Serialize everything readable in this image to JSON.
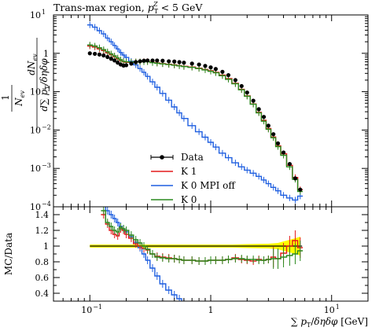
{
  "chart_data": [
    {
      "type": "line",
      "title": "Trans-max region, p_T^Z < 5 GeV",
      "title_parts": [
        "Trans-max region, ",
        "p",
        "T",
        "Z",
        " < 5 GeV"
      ],
      "xlabel": "∑ p_T/δηδφ [GeV]",
      "xlabel_parts": [
        "∑ ",
        "p",
        "T",
        "/",
        "δηδφ",
        " [GeV]"
      ],
      "ylabel_parts": [
        "1",
        "N",
        "ev",
        "dN",
        "ev",
        "d∑ p",
        "T",
        "/δηδφ"
      ],
      "x_scale": "log",
      "y_scale": "log",
      "xlim": [
        0.05,
        20
      ],
      "ylim": [
        0.0001,
        10
      ],
      "x_tick_labels": [
        "10",
        "−1",
        "1",
        "10",
        "1"
      ],
      "y_tick_labels": [
        {
          "base": "10",
          "exp": "−4"
        },
        {
          "base": "10",
          "exp": "−3"
        },
        {
          "base": "10",
          "exp": "−2"
        },
        {
          "base": "10",
          "exp": "−1"
        },
        {
          "base": "1",
          "exp": ""
        },
        {
          "base": "10",
          "exp": "1"
        }
      ],
      "legend_position": "lower-center",
      "legend": [
        "Data",
        "K 1",
        "K 0 MPI off",
        "K 0"
      ],
      "colors": {
        "Data": "#000000",
        "K 1": "#e41a1c",
        "K 0 MPI off": "#1f5fe0",
        "K 0": "#2a8a1f"
      },
      "series": [
        {
          "name": "Data",
          "x": [
            0.1,
            0.11,
            0.12,
            0.13,
            0.14,
            0.15,
            0.16,
            0.17,
            0.18,
            0.19,
            0.2,
            0.22,
            0.24,
            0.26,
            0.28,
            0.3,
            0.33,
            0.36,
            0.4,
            0.45,
            0.5,
            0.55,
            0.6,
            0.7,
            0.8,
            0.9,
            1.0,
            1.1,
            1.25,
            1.4,
            1.6,
            1.8,
            2.0,
            2.25,
            2.5,
            2.75,
            3.0,
            3.3,
            3.6,
            4.0,
            4.5,
            5.0,
            5.5
          ],
          "y": [
            1.0,
            0.97,
            0.93,
            0.88,
            0.8,
            0.72,
            0.65,
            0.57,
            0.51,
            0.48,
            0.49,
            0.54,
            0.59,
            0.62,
            0.64,
            0.65,
            0.65,
            0.65,
            0.64,
            0.62,
            0.61,
            0.59,
            0.57,
            0.54,
            0.51,
            0.47,
            0.43,
            0.39,
            0.33,
            0.27,
            0.2,
            0.14,
            0.095,
            0.058,
            0.035,
            0.022,
            0.013,
            0.0078,
            0.0045,
            0.0026,
            0.0013,
            0.00055,
            0.00028
          ]
        },
        {
          "name": "K 1",
          "x": [
            0.1,
            0.11,
            0.12,
            0.13,
            0.14,
            0.15,
            0.16,
            0.17,
            0.18,
            0.19,
            0.2,
            0.22,
            0.24,
            0.26,
            0.28,
            0.3,
            0.33,
            0.36,
            0.4,
            0.45,
            0.5,
            0.55,
            0.6,
            0.7,
            0.8,
            0.9,
            1.0,
            1.1,
            1.25,
            1.4,
            1.6,
            1.8,
            2.0,
            2.25,
            2.5,
            2.75,
            3.0,
            3.3,
            3.6,
            4.0,
            4.5,
            5.0,
            5.5
          ],
          "y": [
            1.55,
            1.45,
            1.3,
            1.18,
            1.03,
            0.92,
            0.82,
            0.72,
            0.65,
            0.6,
            0.58,
            0.58,
            0.6,
            0.6,
            0.61,
            0.61,
            0.58,
            0.56,
            0.54,
            0.52,
            0.5,
            0.48,
            0.46,
            0.44,
            0.41,
            0.38,
            0.35,
            0.32,
            0.27,
            0.22,
            0.165,
            0.115,
            0.078,
            0.048,
            0.029,
            0.018,
            0.011,
            0.0066,
            0.0039,
            0.0024,
            0.0012,
            0.00058,
            0.00028
          ]
        },
        {
          "name": "K 0 MPI off",
          "x": [
            0.1,
            0.11,
            0.12,
            0.13,
            0.14,
            0.15,
            0.16,
            0.17,
            0.18,
            0.19,
            0.2,
            0.22,
            0.24,
            0.26,
            0.28,
            0.3,
            0.33,
            0.36,
            0.4,
            0.45,
            0.5,
            0.55,
            0.6,
            0.7,
            0.8,
            0.9,
            1.0,
            1.1,
            1.25,
            1.4,
            1.6,
            1.8,
            2.0,
            2.25,
            2.5,
            2.75,
            3.0,
            3.3,
            3.6,
            4.0,
            4.5,
            5.0,
            5.5
          ],
          "y": [
            5.5,
            4.8,
            3.9,
            3.2,
            2.5,
            2.0,
            1.6,
            1.3,
            1.05,
            0.9,
            0.78,
            0.62,
            0.5,
            0.4,
            0.32,
            0.25,
            0.18,
            0.13,
            0.09,
            0.06,
            0.04,
            0.028,
            0.02,
            0.013,
            0.009,
            0.0065,
            0.0048,
            0.0036,
            0.0025,
            0.0019,
            0.0014,
            0.0011,
            0.0009,
            0.00075,
            0.00062,
            0.0005,
            0.0004,
            0.00032,
            0.00026,
            0.0002,
            0.00017,
            0.00015,
            0.00019
          ]
        },
        {
          "name": "K 0",
          "x": [
            0.1,
            0.11,
            0.12,
            0.13,
            0.14,
            0.15,
            0.16,
            0.17,
            0.18,
            0.19,
            0.2,
            0.22,
            0.24,
            0.26,
            0.28,
            0.3,
            0.33,
            0.36,
            0.4,
            0.45,
            0.5,
            0.55,
            0.6,
            0.7,
            0.8,
            0.9,
            1.0,
            1.1,
            1.25,
            1.4,
            1.6,
            1.8,
            2.0,
            2.25,
            2.5,
            2.75,
            3.0,
            3.3,
            3.6,
            4.0,
            4.5,
            5.0,
            5.5
          ],
          "y": [
            1.65,
            1.55,
            1.4,
            1.25,
            1.1,
            0.97,
            0.86,
            0.76,
            0.68,
            0.62,
            0.6,
            0.59,
            0.6,
            0.6,
            0.6,
            0.6,
            0.57,
            0.55,
            0.53,
            0.51,
            0.49,
            0.47,
            0.45,
            0.43,
            0.4,
            0.37,
            0.34,
            0.31,
            0.26,
            0.21,
            0.16,
            0.112,
            0.076,
            0.047,
            0.028,
            0.017,
            0.0105,
            0.0063,
            0.0037,
            0.0022,
            0.0011,
            0.00052,
            0.00025
          ]
        }
      ]
    },
    {
      "type": "line",
      "ylabel": "MC/Data",
      "x_scale": "log",
      "xlim": [
        0.05,
        20
      ],
      "ylim": [
        0.3,
        1.5
      ],
      "y_tick_labels": [
        "0.4",
        "0.6",
        "0.8",
        "1",
        "1.2",
        "1.4"
      ],
      "data_uncertainty_band": {
        "color": "#ffff00",
        "x": [
          0.1,
          0.2,
          0.4,
          0.6,
          1.0,
          1.5,
          2.0,
          3.0,
          3.6,
          4.0,
          4.5,
          5.0,
          5.5
        ],
        "half_width": [
          0.02,
          0.02,
          0.02,
          0.02,
          0.02,
          0.02,
          0.025,
          0.03,
          0.04,
          0.06,
          0.08,
          0.1,
          0.12
        ]
      },
      "series": [
        {
          "name": "K 1",
          "x": [
            0.13,
            0.14,
            0.15,
            0.16,
            0.17,
            0.18,
            0.19,
            0.2,
            0.22,
            0.24,
            0.26,
            0.28,
            0.3,
            0.33,
            0.36,
            0.4,
            0.45,
            0.5,
            0.55,
            0.6,
            0.7,
            0.8,
            0.9,
            1.0,
            1.1,
            1.25,
            1.4,
            1.6,
            1.8,
            2.0,
            2.25,
            2.5,
            2.75,
            3.0,
            3.3,
            3.6,
            4.0,
            4.5,
            5.0,
            5.5
          ],
          "y": [
            1.4,
            1.28,
            1.2,
            1.15,
            1.13,
            1.22,
            1.2,
            1.15,
            1.1,
            1.03,
            1.0,
            0.97,
            0.95,
            0.9,
            0.87,
            0.86,
            0.85,
            0.84,
            0.83,
            0.82,
            0.82,
            0.81,
            0.81,
            0.82,
            0.82,
            0.82,
            0.83,
            0.85,
            0.83,
            0.82,
            0.81,
            0.83,
            0.82,
            0.83,
            0.86,
            0.84,
            0.91,
            1.0,
            1.07,
            0.98
          ]
        },
        {
          "name": "K 0 MPI off",
          "x": [
            0.13,
            0.14,
            0.15,
            0.16,
            0.17,
            0.18,
            0.19,
            0.2,
            0.22,
            0.24,
            0.26,
            0.28,
            0.3,
            0.33,
            0.36,
            0.4,
            0.45,
            0.5,
            0.55,
            0.6
          ],
          "y": [
            1.6,
            1.45,
            1.4,
            1.35,
            1.3,
            1.25,
            1.22,
            1.18,
            1.12,
            1.05,
            0.98,
            0.9,
            0.82,
            0.72,
            0.62,
            0.52,
            0.44,
            0.38,
            0.33,
            0.28
          ]
        },
        {
          "name": "K 0",
          "x": [
            0.13,
            0.14,
            0.15,
            0.16,
            0.17,
            0.18,
            0.19,
            0.2,
            0.22,
            0.24,
            0.26,
            0.28,
            0.3,
            0.33,
            0.36,
            0.4,
            0.45,
            0.5,
            0.55,
            0.6,
            0.7,
            0.8,
            0.9,
            1.0,
            1.1,
            1.25,
            1.4,
            1.6,
            1.8,
            2.0,
            2.25,
            2.5,
            2.75,
            3.0,
            3.3,
            3.6,
            4.0,
            4.5,
            5.0,
            5.5
          ],
          "y": [
            1.45,
            1.3,
            1.25,
            1.2,
            1.18,
            1.24,
            1.22,
            1.2,
            1.14,
            1.08,
            1.04,
            1.0,
            0.96,
            0.9,
            0.86,
            0.85,
            0.84,
            0.84,
            0.83,
            0.82,
            0.82,
            0.81,
            0.81,
            0.82,
            0.82,
            0.82,
            0.83,
            0.84,
            0.84,
            0.83,
            0.83,
            0.82,
            0.82,
            0.83,
            0.84,
            0.84,
            0.86,
            0.88,
            0.9,
            0.94
          ]
        }
      ]
    }
  ]
}
